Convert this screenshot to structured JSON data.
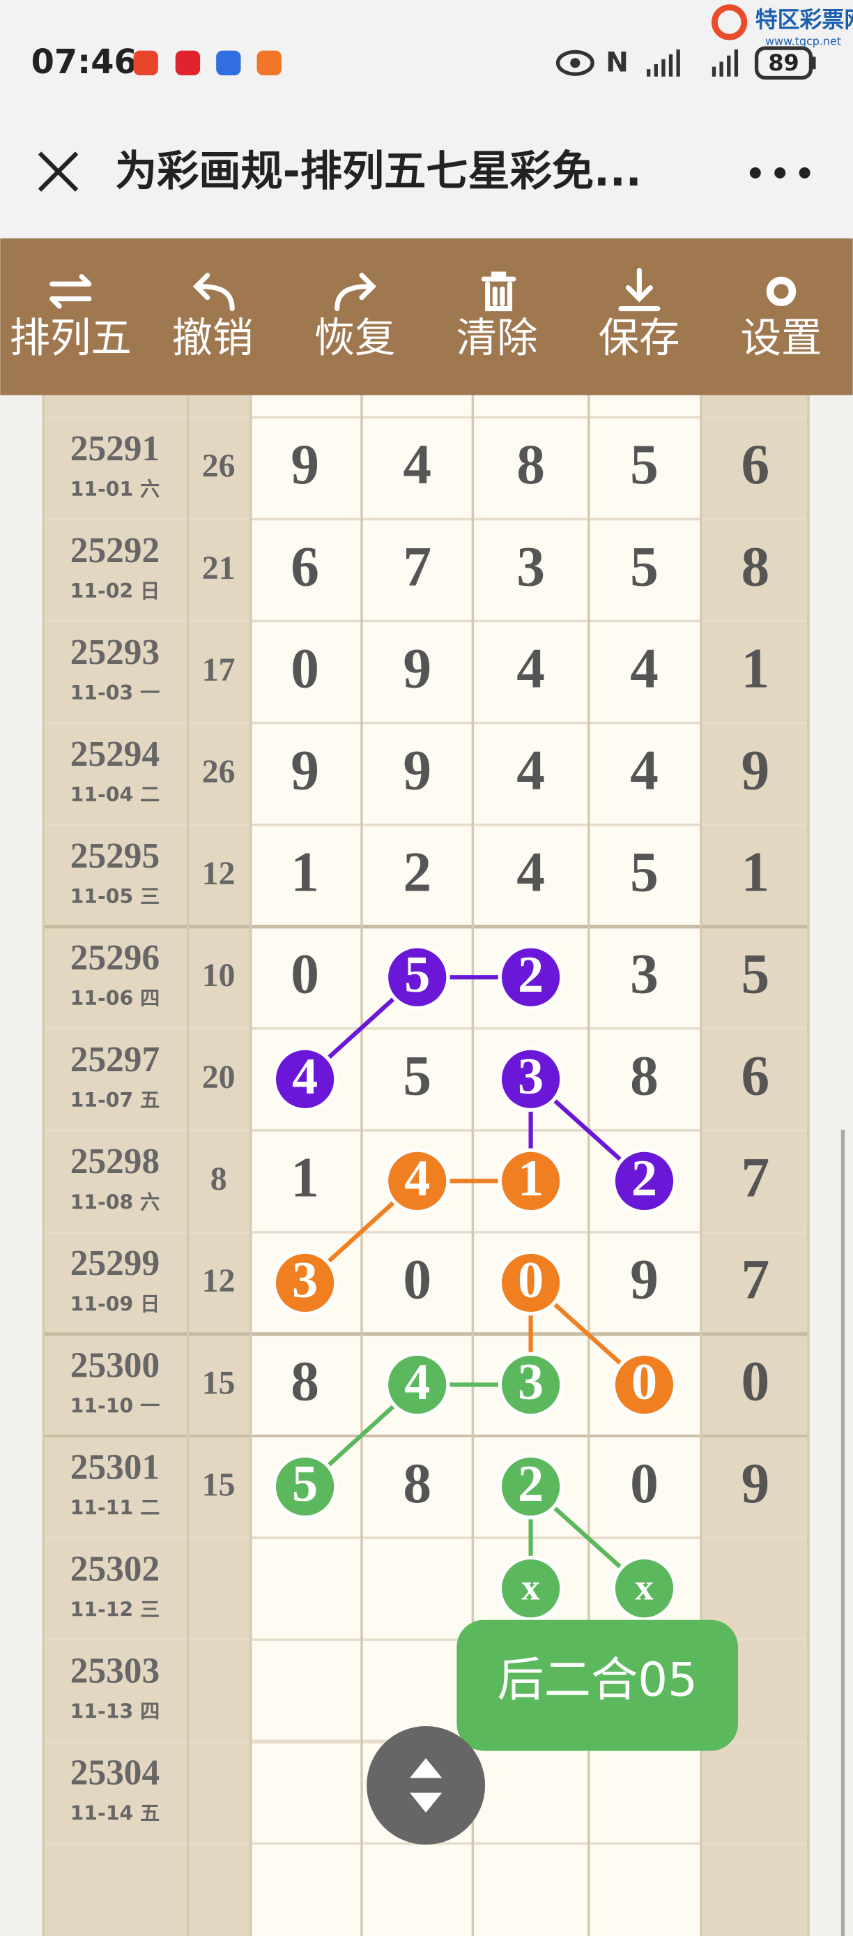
{
  "status_bar": {
    "time": "07:46",
    "battery": "89"
  },
  "watermark": {
    "name": "特区彩票网",
    "url": "www.tqcp.net"
  },
  "header": {
    "title": "为彩画规-排列五七星彩免..."
  },
  "toolbar": [
    "排列五",
    "撤销",
    "恢复",
    "清除",
    "保存",
    "设置"
  ],
  "table": {
    "rows": [
      {
        "period": "25291",
        "date": "11-01 六",
        "sum": "26",
        "digits": [
          "9",
          "4",
          "8",
          "5",
          "6"
        ]
      },
      {
        "period": "25292",
        "date": "11-02 日",
        "sum": "21",
        "digits": [
          "6",
          "7",
          "3",
          "5",
          "8"
        ]
      },
      {
        "period": "25293",
        "date": "11-03 一",
        "sum": "17",
        "digits": [
          "0",
          "9",
          "4",
          "4",
          "1"
        ]
      },
      {
        "period": "25294",
        "date": "11-04 二",
        "sum": "26",
        "digits": [
          "9",
          "9",
          "4",
          "4",
          "9"
        ]
      },
      {
        "period": "25295",
        "date": "11-05 三",
        "sum": "12",
        "digits": [
          "1",
          "2",
          "4",
          "5",
          "1"
        ]
      },
      {
        "period": "25296",
        "date": "11-06 四",
        "sum": "10",
        "digits": [
          "0",
          "5",
          "2",
          "3",
          "5"
        ]
      },
      {
        "period": "25297",
        "date": "11-07 五",
        "sum": "20",
        "digits": [
          "4",
          "5",
          "3",
          "8",
          "6"
        ]
      },
      {
        "period": "25298",
        "date": "11-08 六",
        "sum": "8",
        "digits": [
          "1",
          "4",
          "1",
          "2",
          "7"
        ]
      },
      {
        "period": "25299",
        "date": "11-09 日",
        "sum": "12",
        "digits": [
          "3",
          "0",
          "0",
          "9",
          "7"
        ]
      },
      {
        "period": "25300",
        "date": "11-10 一",
        "sum": "15",
        "digits": [
          "8",
          "4",
          "3",
          "0",
          "0"
        ]
      },
      {
        "period": "25301",
        "date": "11-11 二",
        "sum": "15",
        "digits": [
          "5",
          "8",
          "2",
          "0",
          "9"
        ]
      },
      {
        "period": "25302",
        "date": "11-12 三",
        "digits": [
          null,
          null,
          "x",
          "x",
          null
        ]
      },
      {
        "period": "25303",
        "date": "11-13 四"
      },
      {
        "period": "25304",
        "date": "11-14 五"
      }
    ]
  },
  "patterns": [
    {
      "color": "#6b17d8",
      "cells": [
        [
          5,
          1
        ],
        [
          5,
          2
        ],
        [
          6,
          0
        ],
        [
          6,
          2
        ],
        [
          7,
          3
        ]
      ],
      "links": [
        [
          [
            6,
            0
          ],
          [
            5,
            1
          ]
        ],
        [
          [
            5,
            1
          ],
          [
            5,
            2
          ]
        ],
        [
          [
            6,
            2
          ],
          [
            7,
            2
          ]
        ],
        [
          [
            6,
            2
          ],
          [
            7,
            3
          ]
        ]
      ]
    },
    {
      "color": "#f07f22",
      "cells": [
        [
          7,
          1
        ],
        [
          7,
          2
        ],
        [
          8,
          0
        ],
        [
          8,
          2
        ],
        [
          9,
          3
        ]
      ],
      "links": [
        [
          [
            8,
            0
          ],
          [
            7,
            1
          ]
        ],
        [
          [
            7,
            1
          ],
          [
            7,
            2
          ]
        ],
        [
          [
            8,
            2
          ],
          [
            9,
            2
          ]
        ],
        [
          [
            8,
            2
          ],
          [
            9,
            3
          ]
        ]
      ]
    },
    {
      "color": "#5cb85c",
      "cells": [
        [
          9,
          1
        ],
        [
          9,
          2
        ],
        [
          10,
          0
        ],
        [
          10,
          2
        ],
        [
          11,
          2
        ],
        [
          11,
          3
        ]
      ],
      "links": [
        [
          [
            10,
            0
          ],
          [
            9,
            1
          ]
        ],
        [
          [
            9,
            1
          ],
          [
            9,
            2
          ]
        ],
        [
          [
            10,
            2
          ],
          [
            11,
            2
          ]
        ],
        [
          [
            10,
            2
          ],
          [
            11,
            3
          ]
        ]
      ]
    }
  ],
  "badge": "后二合05"
}
